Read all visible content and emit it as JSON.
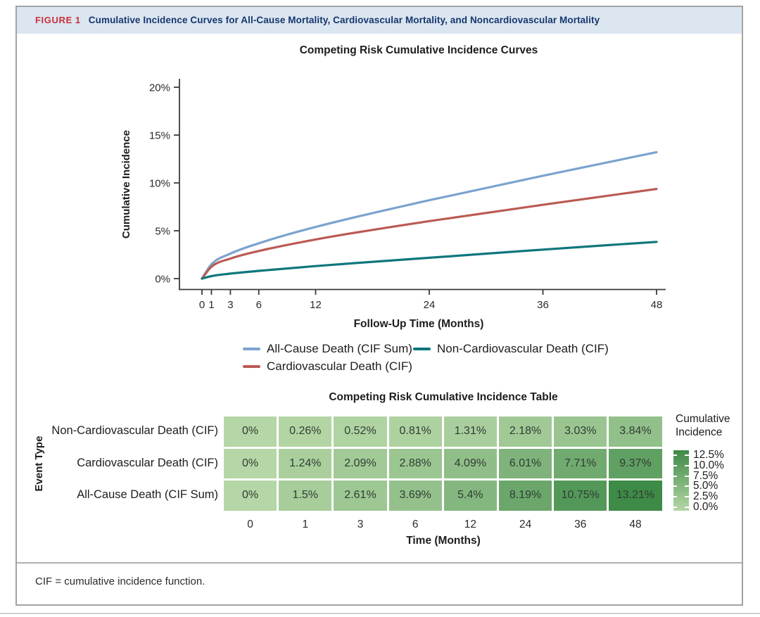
{
  "figure": {
    "label": "FIGURE 1",
    "title": "Cumulative Incidence Curves for All-Cause Mortality, Cardiovascular Mortality, and Noncardiovascular Mortality",
    "footnote": "CIF = cumulative incidence function."
  },
  "colors": {
    "header_band_bg": "#dbe6f1",
    "figure_label_red": "#cb2f38",
    "figure_title_navy": "#17366d",
    "axis_color": "#3a3a3a",
    "all_cause_blue": "#7ba3cf",
    "cardiovascular_red": "#bb5a53",
    "non_cardiovascular_teal": "#0e767d",
    "heatmap_min_green": "#b5d6a6",
    "heatmap_max_green": "#3e8a47"
  },
  "chart_data": [
    {
      "type": "line",
      "title": "Competing Risk Cumulative Incidence Curves",
      "xlabel": "Follow-Up Time (Months)",
      "ylabel": "Cumulative Incidence",
      "x": [
        0,
        1,
        3,
        6,
        12,
        24,
        36,
        48
      ],
      "x_tick_labels": [
        "0",
        "1",
        "3",
        "6",
        "12",
        "24",
        "36",
        "48"
      ],
      "y_ticks": [
        0,
        5,
        10,
        15,
        20
      ],
      "y_tick_labels": [
        "0%",
        "5%",
        "10%",
        "15%",
        "20%"
      ],
      "xlim": [
        0,
        48
      ],
      "ylim": [
        0,
        20
      ],
      "grid": false,
      "legend_position": "bottom",
      "series": [
        {
          "name": "All-Cause Death (CIF Sum)",
          "color": "#7ba3cf",
          "values": [
            0,
            1.5,
            2.61,
            3.69,
            5.4,
            8.19,
            10.75,
            13.21
          ]
        },
        {
          "name": "Cardiovascular Death (CIF)",
          "color": "#bb5a53",
          "values": [
            0,
            1.24,
            2.09,
            2.88,
            4.09,
            6.01,
            7.71,
            9.37
          ]
        },
        {
          "name": "Non-Cardiovascular Death (CIF)",
          "color": "#0e767d",
          "values": [
            0,
            0.26,
            0.52,
            0.81,
            1.31,
            2.18,
            3.03,
            3.84
          ]
        }
      ],
      "legend": {
        "rows": [
          [
            "All-Cause Death (CIF Sum)",
            "Non-Cardiovascular Death (CIF)"
          ],
          [
            "Cardiovascular Death (CIF)"
          ]
        ]
      }
    },
    {
      "type": "heatmap",
      "title": "Competing Risk Cumulative Incidence Table",
      "xlabel": "Time (Months)",
      "ylabel": "Event Type",
      "columns": [
        "0",
        "1",
        "3",
        "6",
        "12",
        "24",
        "36",
        "48"
      ],
      "rows": [
        {
          "label": "Non-Cardiovascular Death (CIF)",
          "cells": [
            "0%",
            "0.26%",
            "0.52%",
            "0.81%",
            "1.31%",
            "2.18%",
            "3.03%",
            "3.84%"
          ],
          "values": [
            0,
            0.26,
            0.52,
            0.81,
            1.31,
            2.18,
            3.03,
            3.84
          ]
        },
        {
          "label": "Cardiovascular Death (CIF)",
          "cells": [
            "0%",
            "1.24%",
            "2.09%",
            "2.88%",
            "4.09%",
            "6.01%",
            "7.71%",
            "9.37%"
          ],
          "values": [
            0,
            1.24,
            2.09,
            2.88,
            4.09,
            6.01,
            7.71,
            9.37
          ]
        },
        {
          "label": "All-Cause Death (CIF Sum)",
          "cells": [
            "0%",
            "1.5%",
            "2.61%",
            "3.69%",
            "5.4%",
            "8.19%",
            "10.75%",
            "13.21%"
          ],
          "values": [
            0,
            1.5,
            2.61,
            3.69,
            5.4,
            8.19,
            10.75,
            13.21
          ]
        }
      ],
      "colorbar": {
        "title": "Cumulative Incidence",
        "tick_labels": [
          "12.5%",
          "10.0%",
          "7.5%",
          "5.0%",
          "2.5%",
          "0.0%"
        ],
        "min_value": 0,
        "max_value": 13.21,
        "min_color": "#b5d6a6",
        "max_color": "#3e8a47"
      }
    }
  ]
}
